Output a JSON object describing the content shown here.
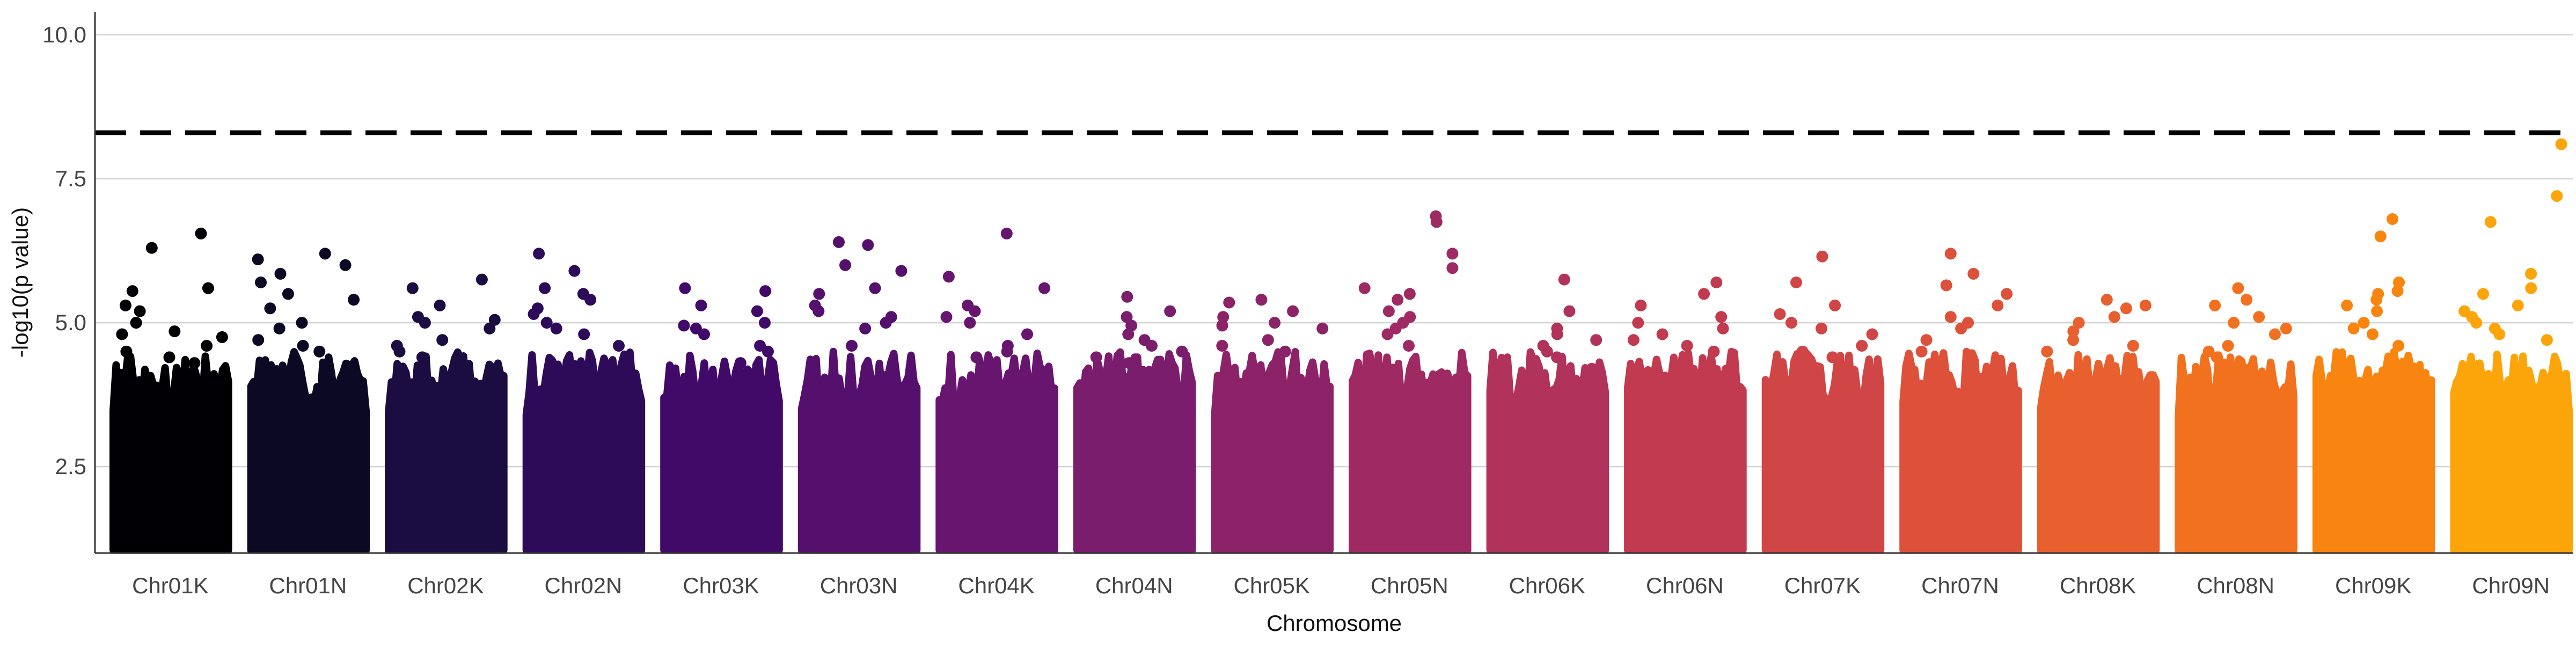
{
  "chart_data": {
    "type": "scatter",
    "title": "",
    "xlabel": "Chromosome",
    "ylabel": "-log10(p value)",
    "ylim": [
      1.0,
      10.4
    ],
    "y_ticks": [
      {
        "value": 2.5,
        "label": "2.5"
      },
      {
        "value": 5.0,
        "label": "5.0"
      },
      {
        "value": 7.5,
        "label": "7.5"
      },
      {
        "value": 10.0,
        "label": "10.0"
      }
    ],
    "gridlines": "horizontal major",
    "legend": "none",
    "threshold": {
      "value": 8.3,
      "style": "dashed",
      "color": "#000000"
    },
    "palette": "inferno",
    "categories": [
      "Chr01K",
      "Chr01N",
      "Chr02K",
      "Chr02N",
      "Chr03K",
      "Chr03N",
      "Chr04K",
      "Chr04N",
      "Chr05K",
      "Chr05N",
      "Chr06K",
      "Chr06N",
      "Chr07K",
      "Chr07N",
      "Chr08K",
      "Chr08N",
      "Chr09K",
      "Chr09N"
    ],
    "series": [
      {
        "category": "Chr01K",
        "color": "#000004",
        "values": [
          6.55,
          6.3,
          5.6,
          5.55,
          5.3,
          5.2,
          5.0,
          4.85,
          4.8,
          4.75,
          4.6,
          4.5,
          4.4,
          4.3
        ]
      },
      {
        "category": "Chr01N",
        "color": "#0b0924",
        "values": [
          6.2,
          6.1,
          6.0,
          5.85,
          5.7,
          5.5,
          5.4,
          5.25,
          5.0,
          4.9,
          4.7,
          4.6,
          4.5
        ]
      },
      {
        "category": "Chr02K",
        "color": "#1b0c41",
        "values": [
          5.75,
          5.6,
          5.3,
          5.1,
          5.05,
          5.0,
          4.9,
          4.7,
          4.6,
          4.5,
          4.4
        ]
      },
      {
        "category": "Chr02N",
        "color": "#2d0b59",
        "values": [
          6.2,
          5.9,
          5.6,
          5.5,
          5.4,
          5.25,
          5.15,
          5.0,
          4.9,
          4.8,
          4.6
        ]
      },
      {
        "category": "Chr03K",
        "color": "#420a68",
        "values": [
          5.6,
          5.55,
          5.3,
          5.2,
          5.0,
          4.95,
          4.9,
          4.8,
          4.6,
          4.5,
          4.3
        ]
      },
      {
        "category": "Chr03N",
        "color": "#550f6d",
        "values": [
          6.4,
          6.35,
          6.0,
          5.9,
          5.6,
          5.5,
          5.3,
          5.2,
          5.1,
          5.0,
          4.9,
          4.6
        ]
      },
      {
        "category": "Chr04K",
        "color": "#681570",
        "values": [
          6.55,
          5.8,
          5.6,
          5.3,
          5.2,
          5.1,
          5.0,
          4.8,
          4.6,
          4.5,
          4.4
        ]
      },
      {
        "category": "Chr04N",
        "color": "#7a1d6d",
        "values": [
          5.45,
          5.2,
          5.1,
          4.95,
          4.8,
          4.7,
          4.6,
          4.5,
          4.4,
          4.3
        ]
      },
      {
        "category": "Chr05K",
        "color": "#8c2369",
        "values": [
          5.4,
          5.35,
          5.2,
          5.1,
          5.0,
          4.95,
          4.9,
          4.7,
          4.6,
          4.5
        ]
      },
      {
        "category": "Chr05N",
        "color": "#9f2a63",
        "values": [
          6.85,
          6.75,
          6.2,
          5.95,
          5.6,
          5.5,
          5.4,
          5.2,
          5.1,
          5.0,
          4.9,
          4.8,
          4.6
        ]
      },
      {
        "category": "Chr06K",
        "color": "#b1325a",
        "values": [
          5.75,
          5.2,
          4.9,
          4.8,
          4.7,
          4.6,
          4.5,
          4.4,
          4.2
        ]
      },
      {
        "category": "Chr06N",
        "color": "#c13a50",
        "values": [
          5.7,
          5.5,
          5.3,
          5.1,
          5.0,
          4.9,
          4.8,
          4.7,
          4.6,
          4.5
        ]
      },
      {
        "category": "Chr07K",
        "color": "#d04545",
        "values": [
          6.15,
          5.7,
          5.3,
          5.15,
          5.0,
          4.9,
          4.8,
          4.6,
          4.5,
          4.4
        ]
      },
      {
        "category": "Chr07N",
        "color": "#dd513a",
        "values": [
          6.2,
          5.85,
          5.65,
          5.5,
          5.3,
          5.1,
          5.0,
          4.9,
          4.7,
          4.5
        ]
      },
      {
        "category": "Chr08K",
        "color": "#e8602d",
        "values": [
          5.4,
          5.3,
          5.25,
          5.1,
          5.0,
          4.85,
          4.7,
          4.6,
          4.5
        ]
      },
      {
        "category": "Chr08N",
        "color": "#f1711f",
        "values": [
          5.6,
          5.4,
          5.3,
          5.1,
          5.0,
          4.9,
          4.8,
          4.6,
          4.5,
          4.4
        ]
      },
      {
        "category": "Chr09K",
        "color": "#f8850f",
        "values": [
          6.8,
          6.5,
          5.7,
          5.55,
          5.5,
          5.4,
          5.3,
          5.2,
          5.0,
          4.9,
          4.8,
          4.6
        ]
      },
      {
        "category": "Chr09N",
        "color": "#fca50a",
        "values": [
          8.1,
          7.2,
          6.75,
          5.85,
          5.6,
          5.5,
          5.3,
          5.2,
          5.1,
          5.0,
          4.9,
          4.8,
          4.7
        ]
      }
    ]
  }
}
